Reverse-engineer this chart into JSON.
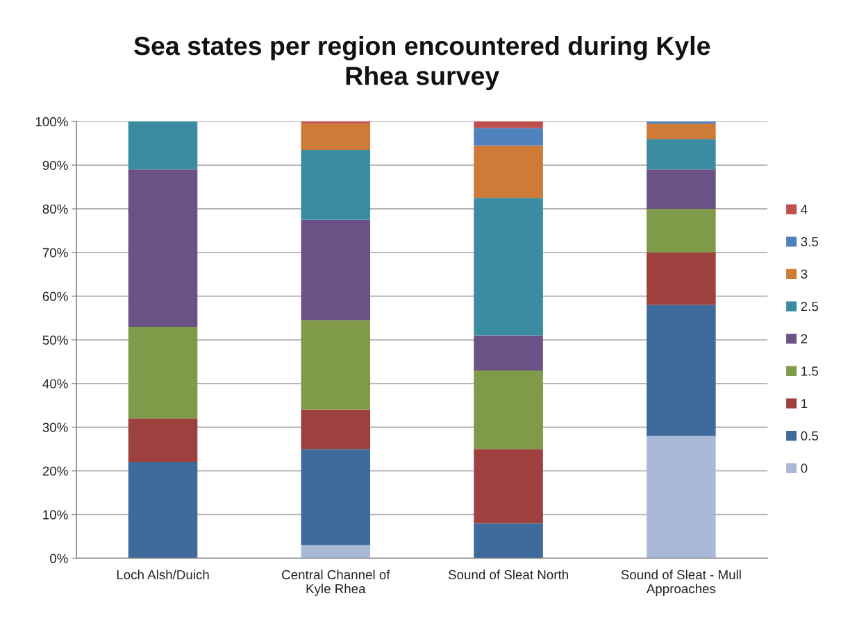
{
  "chart_data": {
    "type": "bar",
    "stacked": true,
    "title": "Sea states per region encountered during Kyle\nRhea survey",
    "categories": [
      "Loch Alsh/Duich",
      "Central Channel of\nKyle Rhea",
      "Sound of Sleat North",
      "Sound of Sleat - Mull\nApproaches"
    ],
    "series": [
      {
        "name": "0",
        "color": "#aab9d7",
        "values": [
          null,
          3,
          null,
          28
        ]
      },
      {
        "name": "0.5",
        "color": "#3f6a9c",
        "values": [
          22,
          22,
          8,
          30
        ]
      },
      {
        "name": "1",
        "color": "#9e413e",
        "values": [
          10,
          9,
          17,
          12
        ]
      },
      {
        "name": "1.5",
        "color": "#7f9a48",
        "values": [
          21,
          20.5,
          18,
          10
        ]
      },
      {
        "name": "2",
        "color": "#6a5186",
        "values": [
          36,
          23,
          8,
          9
        ]
      },
      {
        "name": "2.5",
        "color": "#3b8ba1",
        "values": [
          11,
          16,
          31.5,
          7
        ]
      },
      {
        "name": "3",
        "color": "#cd7b36",
        "values": [
          null,
          6,
          12,
          3.5
        ]
      },
      {
        "name": "3.5",
        "color": "#4f81bd",
        "values": [
          null,
          null,
          4,
          0.5
        ]
      },
      {
        "name": "4",
        "color": "#c0504d",
        "values": [
          null,
          0.5,
          1.5,
          null
        ]
      }
    ],
    "ylim": [
      0,
      100
    ],
    "yticks": [
      {
        "value": 0,
        "label": "0%"
      },
      {
        "value": 10,
        "label": "10%"
      },
      {
        "value": 20,
        "label": "20%"
      },
      {
        "value": 30,
        "label": "30%"
      },
      {
        "value": 40,
        "label": "40%"
      },
      {
        "value": 50,
        "label": "50%"
      },
      {
        "value": 60,
        "label": "60%"
      },
      {
        "value": 70,
        "label": "70%"
      },
      {
        "value": 80,
        "label": "80%"
      },
      {
        "value": 90,
        "label": "90%"
      },
      {
        "value": 100,
        "label": "100%"
      }
    ],
    "grid": "y",
    "legend": "right"
  }
}
